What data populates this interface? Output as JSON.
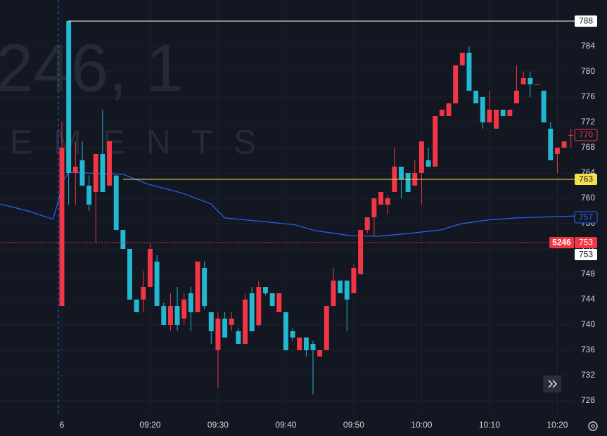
{
  "chart_data": {
    "type": "candlestick",
    "watermark": {
      "line1": "246, 1",
      "line2": "EMENTS"
    },
    "x": [
      0,
      1,
      2,
      3,
      4,
      5,
      6,
      7,
      8,
      9,
      10,
      11,
      12,
      13,
      14,
      15,
      16,
      17,
      18,
      19,
      20,
      21,
      22,
      23,
      24,
      25,
      26,
      27,
      28,
      29,
      30,
      31,
      32,
      33,
      34,
      35,
      36,
      37,
      38,
      39,
      40,
      41,
      42,
      43,
      44,
      45,
      46,
      47,
      48,
      49,
      50,
      51,
      52,
      53,
      54,
      55,
      56,
      57,
      58,
      59,
      60,
      61,
      62,
      63,
      64,
      65,
      66,
      67,
      68,
      69,
      70,
      71,
      72,
      73,
      74,
      75
    ],
    "open": [
      743,
      788,
      764,
      766,
      762,
      761,
      767,
      762,
      763.6,
      755,
      752,
      744,
      744,
      746,
      750,
      743,
      740,
      743,
      741,
      745,
      742,
      749,
      742,
      736,
      741,
      740,
      739,
      737,
      745,
      740,
      746,
      745,
      742,
      742,
      739,
      736,
      738,
      737,
      735,
      736,
      743,
      747,
      747,
      745,
      748,
      755,
      757,
      759,
      759,
      761,
      765,
      764,
      762,
      764,
      766,
      765,
      773,
      773,
      775,
      781,
      783,
      777,
      776,
      772,
      771,
      774,
      773,
      775,
      778,
      779,
      778,
      777,
      771,
      767,
      768,
      770
    ],
    "high": [
      772,
      788,
      769,
      769,
      763.6,
      767,
      774,
      769,
      763.6,
      755,
      752,
      744,
      748.5,
      753,
      751,
      743.5,
      745,
      746,
      745,
      746,
      750,
      750,
      742,
      742,
      742,
      742,
      739.5,
      745,
      746,
      747,
      746,
      745,
      745,
      742,
      739.5,
      738,
      738,
      737.5,
      736,
      743,
      749,
      747,
      747,
      749.5,
      755,
      757,
      760,
      761,
      760.5,
      768,
      765,
      764,
      766,
      769,
      768,
      773,
      774,
      775,
      781,
      783,
      784,
      777,
      776,
      777,
      774,
      774,
      774,
      781,
      780,
      780,
      778,
      777,
      772,
      768,
      769,
      771
    ],
    "low": [
      743,
      759,
      759,
      762,
      758,
      753,
      761,
      762,
      755,
      752,
      744,
      742,
      742,
      746,
      743,
      740,
      739,
      739,
      740,
      739,
      742,
      742.5,
      737,
      730,
      738,
      739,
      737,
      737,
      739,
      739.7,
      744.7,
      743,
      742,
      736,
      737.5,
      736,
      735,
      729,
      735,
      736,
      743,
      745,
      739,
      745,
      748,
      754.5,
      754,
      759,
      757.5,
      761,
      760,
      761,
      762,
      759,
      765,
      765,
      773,
      773,
      775,
      781,
      777,
      775,
      771,
      772,
      771,
      773,
      773,
      775,
      778,
      776,
      778,
      772,
      766,
      764,
      768,
      768
    ],
    "close": [
      768,
      764,
      765,
      762,
      759,
      767,
      761,
      769,
      755,
      752,
      744,
      742,
      746,
      752,
      743,
      740,
      743,
      740,
      744,
      742,
      750,
      743,
      739,
      741,
      738,
      741,
      737,
      744,
      739,
      746,
      745,
      743,
      745,
      736,
      738,
      738,
      736,
      736,
      736,
      743,
      747,
      745,
      744,
      749,
      755,
      757,
      760,
      761,
      760,
      765,
      763,
      761,
      764,
      769,
      765,
      773,
      774,
      775,
      781,
      783,
      777,
      775,
      772,
      774,
      774,
      773,
      774,
      777,
      779,
      778,
      778,
      772,
      766,
      768,
      769,
      770
    ],
    "up_color": "#f23645",
    "down_color": "#22b8cf",
    "ma": {
      "color": "#2962ff",
      "x": [
        -9.1,
        -5,
        -1.3,
        -0.5,
        0,
        1,
        9,
        12.8,
        17.8,
        22,
        24,
        30,
        34.4,
        37.3,
        42.5,
        46.6,
        50.7,
        55.8,
        58.9,
        63,
        67,
        75.5
      ],
      "values": [
        759.1,
        758,
        756.7,
        759.7,
        762.4,
        764.1,
        763.8,
        762.2,
        760.8,
        759.1,
        756.9,
        756.3,
        755.8,
        754.9,
        754.1,
        754,
        754.4,
        755,
        756,
        756.6,
        756.9,
        757.2
      ]
    },
    "price_labels": [
      {
        "value": 788,
        "bg": "#ffffff",
        "fg": "#131722",
        "line": "#ffffff"
      },
      {
        "value": 770,
        "bg": "#131722",
        "fg": "#f23645",
        "border": "#f23645"
      },
      {
        "value": 763,
        "bg": "#f5e04a",
        "fg": "#131722",
        "line": "#f5e04a"
      },
      {
        "value": 757,
        "bg": "#131722",
        "fg": "#2962ff",
        "border": "#2962ff"
      },
      {
        "value": 753,
        "bg": "#f23645",
        "fg": "#ffffff",
        "line": "#f23645",
        "tag": "5246"
      },
      {
        "value": 753,
        "bg": "#ffffff",
        "fg": "#131722"
      }
    ],
    "xlim": [
      -9.12,
      75.55
    ],
    "ylim": [
      725.78,
      791.33
    ],
    "yticks": [
      728,
      732,
      736,
      740,
      744,
      748,
      752,
      756,
      760,
      764,
      768,
      772,
      776,
      780,
      784
    ],
    "xticks": [
      {
        "value": 0,
        "label": "6"
      },
      {
        "value": 13,
        "label": "09:20"
      },
      {
        "value": 23,
        "label": "09:30"
      },
      {
        "value": 33,
        "label": "09:40"
      },
      {
        "value": 43,
        "label": "09:50"
      },
      {
        "value": 53,
        "label": "10:00"
      },
      {
        "value": 63,
        "label": "10:10"
      },
      {
        "value": 73,
        "label": "10:20"
      }
    ],
    "grid": true
  }
}
